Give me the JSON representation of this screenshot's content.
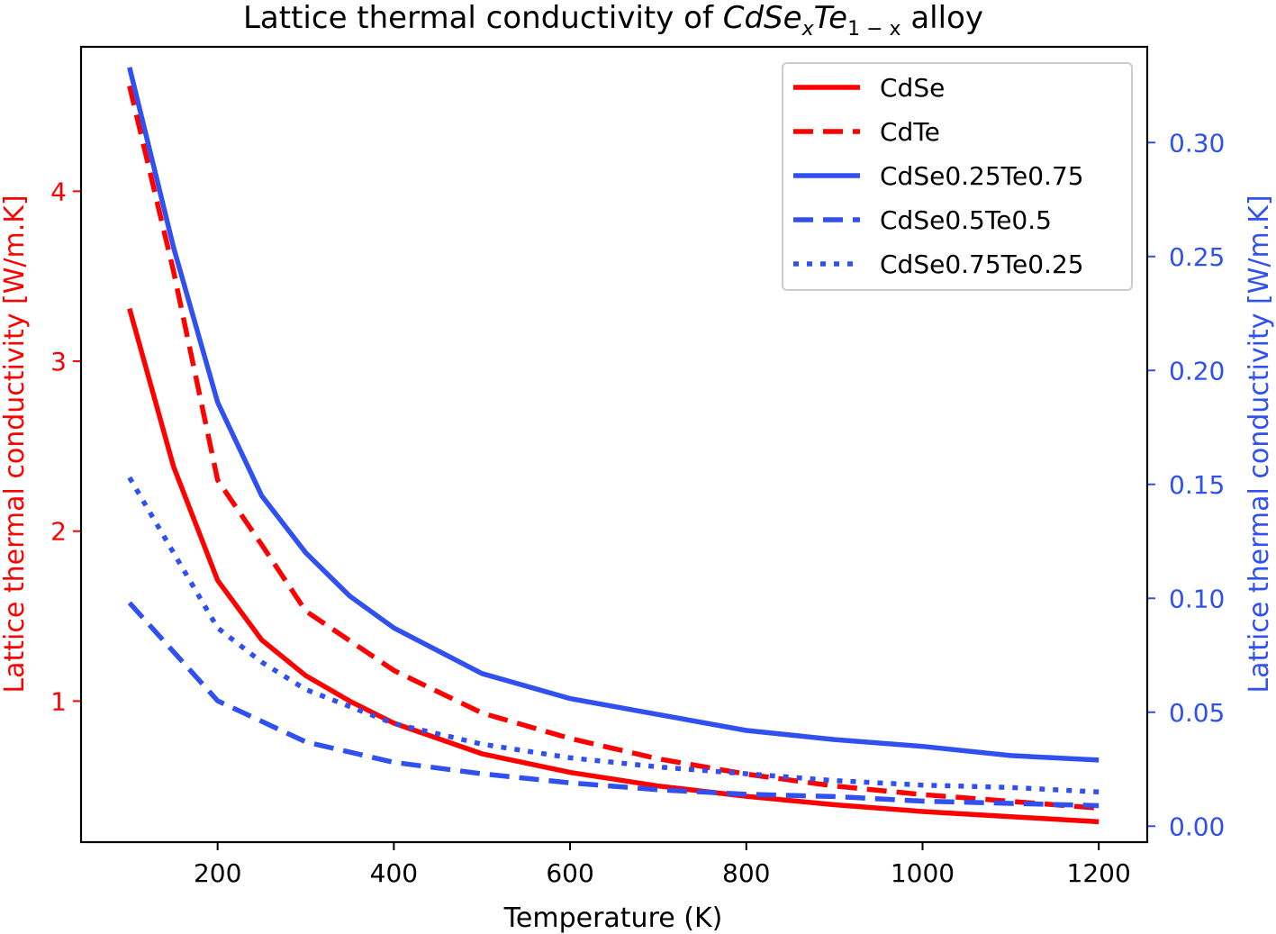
{
  "chart_data": {
    "type": "line",
    "title": {
      "prefix": "Lattice thermal conductivity of ",
      "formula_base1": "CdSe",
      "formula_sub1": "x",
      "formula_base2": "Te",
      "formula_sub2": "1 − x",
      "suffix": " alloy"
    },
    "xlabel": "Temperature (K)",
    "ylabel_left": "Lattice thermal conductivity [W/m.K]",
    "ylabel_right": "Lattice thermal conductivity [W/m.K]",
    "xlim": [
      45,
      1255
    ],
    "ylim_left": [
      0.17,
      4.85
    ],
    "ylim_right": [
      -0.007,
      0.342
    ],
    "xticks": [
      200,
      400,
      600,
      800,
      1000,
      1200
    ],
    "xtick_labels": [
      "200",
      "400",
      "600",
      "800",
      "1000",
      "1200"
    ],
    "yticks_left": [
      1,
      2,
      3,
      4
    ],
    "ytick_labels_left": [
      "1",
      "2",
      "3",
      "4"
    ],
    "yticks_right": [
      0.0,
      0.05,
      0.1,
      0.15,
      0.2,
      0.25,
      0.3
    ],
    "ytick_labels_right": [
      "0.00",
      "0.05",
      "0.10",
      "0.15",
      "0.20",
      "0.25",
      "0.30"
    ],
    "grid": false,
    "legend_position": "upper right",
    "colors": {
      "left_axis": "#ff0000",
      "right_axis": "#3050f0",
      "red_series": "#ff0000",
      "blue_series": "#3050f0"
    },
    "series": [
      {
        "name": "CdSe",
        "axis": "left",
        "color": "#ff0000",
        "style": "solid",
        "x": [
          100,
          150,
          200,
          250,
          300,
          350,
          400,
          500,
          600,
          700,
          800,
          900,
          1000,
          1100,
          1200
        ],
        "y": [
          3.31,
          2.38,
          1.71,
          1.36,
          1.15,
          1.0,
          0.87,
          0.69,
          0.58,
          0.5,
          0.44,
          0.39,
          0.35,
          0.32,
          0.29
        ]
      },
      {
        "name": "CdTe",
        "axis": "left",
        "color": "#ff0000",
        "style": "dashed",
        "x": [
          100,
          150,
          200,
          250,
          300,
          400,
          500,
          600,
          700,
          800,
          900,
          1000,
          1100,
          1200
        ],
        "y": [
          4.62,
          3.53,
          2.3,
          1.92,
          1.53,
          1.18,
          0.93,
          0.78,
          0.66,
          0.57,
          0.5,
          0.45,
          0.41,
          0.37
        ]
      },
      {
        "name": "CdSe0.25Te0.75",
        "axis": "right",
        "color": "#3050f0",
        "style": "solid",
        "x": [
          100,
          150,
          200,
          250,
          300,
          350,
          400,
          500,
          600,
          700,
          800,
          900,
          1000,
          1100,
          1200
        ],
        "y": [
          0.333,
          0.254,
          0.186,
          0.145,
          0.12,
          0.101,
          0.087,
          0.067,
          0.056,
          0.049,
          0.042,
          0.038,
          0.035,
          0.031,
          0.029
        ]
      },
      {
        "name": "CdSe0.5Te0.5",
        "axis": "right",
        "color": "#3050f0",
        "style": "dashed",
        "x": [
          100,
          200,
          300,
          400,
          500,
          600,
          700,
          800,
          900,
          1000,
          1100,
          1200
        ],
        "y": [
          0.098,
          0.055,
          0.037,
          0.028,
          0.023,
          0.019,
          0.016,
          0.014,
          0.013,
          0.011,
          0.01,
          0.009
        ]
      },
      {
        "name": "CdSe0.75Te0.25",
        "axis": "right",
        "color": "#3050f0",
        "style": "dotted",
        "x": [
          100,
          150,
          200,
          250,
          300,
          400,
          500,
          600,
          700,
          800,
          900,
          1000,
          1100,
          1200
        ],
        "y": [
          0.153,
          0.12,
          0.087,
          0.072,
          0.06,
          0.045,
          0.036,
          0.03,
          0.026,
          0.023,
          0.02,
          0.018,
          0.017,
          0.015
        ]
      }
    ]
  }
}
